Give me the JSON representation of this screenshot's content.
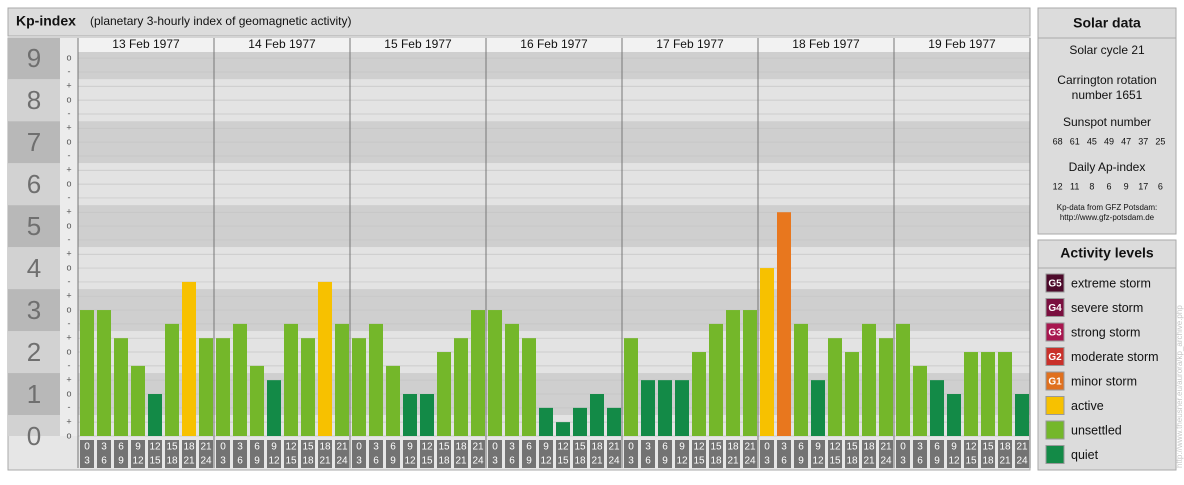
{
  "chart_data": {
    "type": "bar",
    "title": "Kp-index",
    "subtitle": "(planetary 3-hourly index of geomagnetic activity)",
    "ylim": [
      0,
      9.48
    ],
    "yticks": [
      0,
      1,
      2,
      3,
      4,
      5,
      6,
      7,
      8,
      9
    ],
    "sub_ticks": [
      {
        "value": 0,
        "label": "o"
      },
      {
        "value": 0.33,
        "label": "+"
      },
      {
        "value": 0.67,
        "label": "-"
      },
      {
        "value": 1,
        "label": "o"
      },
      {
        "value": 1.33,
        "label": "+"
      },
      {
        "value": 1.67,
        "label": "-"
      },
      {
        "value": 2,
        "label": "o"
      },
      {
        "value": 2.33,
        "label": "+"
      },
      {
        "value": 2.67,
        "label": "-"
      },
      {
        "value": 3,
        "label": "o"
      },
      {
        "value": 3.33,
        "label": "+"
      },
      {
        "value": 3.67,
        "label": "-"
      },
      {
        "value": 4,
        "label": "o"
      },
      {
        "value": 4.33,
        "label": "+"
      },
      {
        "value": 4.67,
        "label": "-"
      },
      {
        "value": 5,
        "label": "o"
      },
      {
        "value": 5.33,
        "label": "+"
      },
      {
        "value": 5.67,
        "label": "-"
      },
      {
        "value": 6,
        "label": "o"
      },
      {
        "value": 6.33,
        "label": "+"
      },
      {
        "value": 6.67,
        "label": "-"
      },
      {
        "value": 7,
        "label": "o"
      },
      {
        "value": 7.33,
        "label": "+"
      },
      {
        "value": 7.67,
        "label": "-"
      },
      {
        "value": 8,
        "label": "o"
      },
      {
        "value": 8.33,
        "label": "+"
      },
      {
        "value": 8.67,
        "label": "-"
      },
      {
        "value": 9,
        "label": "o"
      }
    ],
    "grid": true,
    "hour_labels": [
      [
        "0",
        "3"
      ],
      [
        "3",
        "6"
      ],
      [
        "6",
        "9"
      ],
      [
        "9",
        "12"
      ],
      [
        "12",
        "15"
      ],
      [
        "15",
        "18"
      ],
      [
        "18",
        "21"
      ],
      [
        "21",
        "24"
      ]
    ],
    "days": [
      {
        "date": "13 Feb 1977",
        "values": [
          3,
          3,
          2.33,
          1.67,
          1,
          2.67,
          3.67,
          2.33
        ],
        "colors": [
          "#74b72a",
          "#74b72a",
          "#74b72a",
          "#74b72a",
          "#138a47",
          "#74b72a",
          "#f7c100",
          "#74b72a"
        ]
      },
      {
        "date": "14 Feb 1977",
        "values": [
          2.33,
          2.67,
          1.67,
          1.33,
          2.67,
          2.33,
          3.67,
          2.67
        ],
        "colors": [
          "#74b72a",
          "#74b72a",
          "#74b72a",
          "#138a47",
          "#74b72a",
          "#74b72a",
          "#f7c100",
          "#74b72a"
        ]
      },
      {
        "date": "15 Feb 1977",
        "values": [
          2.33,
          2.67,
          1.67,
          1,
          1,
          2,
          2.33,
          3
        ],
        "colors": [
          "#74b72a",
          "#74b72a",
          "#74b72a",
          "#138a47",
          "#138a47",
          "#74b72a",
          "#74b72a",
          "#74b72a"
        ]
      },
      {
        "date": "16 Feb 1977",
        "values": [
          3,
          2.67,
          2.33,
          0.67,
          0.33,
          0.67,
          1,
          0.67
        ],
        "colors": [
          "#74b72a",
          "#74b72a",
          "#74b72a",
          "#138a47",
          "#138a47",
          "#138a47",
          "#138a47",
          "#138a47"
        ]
      },
      {
        "date": "17 Feb 1977",
        "values": [
          2.33,
          1.33,
          1.33,
          1.33,
          2,
          2.67,
          3,
          3
        ],
        "colors": [
          "#74b72a",
          "#138a47",
          "#138a47",
          "#138a47",
          "#74b72a",
          "#74b72a",
          "#74b72a",
          "#74b72a"
        ]
      },
      {
        "date": "18 Feb 1977",
        "values": [
          4,
          5.33,
          2.67,
          1.33,
          2.33,
          2,
          2.67,
          2.33
        ],
        "colors": [
          "#f7c100",
          "#e8771e",
          "#74b72a",
          "#138a47",
          "#74b72a",
          "#74b72a",
          "#74b72a",
          "#74b72a"
        ]
      },
      {
        "date": "19 Feb 1977",
        "values": [
          2.67,
          1.67,
          1.33,
          1,
          2,
          2,
          2,
          1
        ],
        "colors": [
          "#74b72a",
          "#74b72a",
          "#138a47",
          "#138a47",
          "#74b72a",
          "#74b72a",
          "#74b72a",
          "#138a47"
        ]
      }
    ],
    "solar": {
      "title": "Solar data",
      "cycle": "Solar cycle 21",
      "carrington": [
        "Carrington rotation",
        "number 1651"
      ],
      "sunspot_title": "Sunspot number",
      "sunspot": [
        68,
        61,
        45,
        49,
        47,
        37,
        25
      ],
      "ap_title": "Daily Ap-index",
      "ap": [
        12,
        11,
        8,
        6,
        9,
        17,
        6
      ],
      "source": [
        "Kp-data from GFZ Potsdam:",
        "http://www.gfz-potsdam.de"
      ]
    },
    "legend": {
      "title": "Activity levels",
      "items": [
        {
          "badge": "G5",
          "name": "extreme storm",
          "color": "#4d0a2b"
        },
        {
          "badge": "G4",
          "name": "severe storm",
          "color": "#7a0f3f"
        },
        {
          "badge": "G3",
          "name": "strong storm",
          "color": "#a8174f"
        },
        {
          "badge": "G2",
          "name": "moderate storm",
          "color": "#c9302a"
        },
        {
          "badge": "G1",
          "name": "minor storm",
          "color": "#e0701e"
        },
        {
          "name": "active",
          "color": "#f7c100"
        },
        {
          "name": "unsettled",
          "color": "#74b72a"
        },
        {
          "name": "quiet",
          "color": "#138a47"
        }
      ]
    },
    "credit": "http://www.theusner.eu/aurora/kp_archive.php"
  }
}
